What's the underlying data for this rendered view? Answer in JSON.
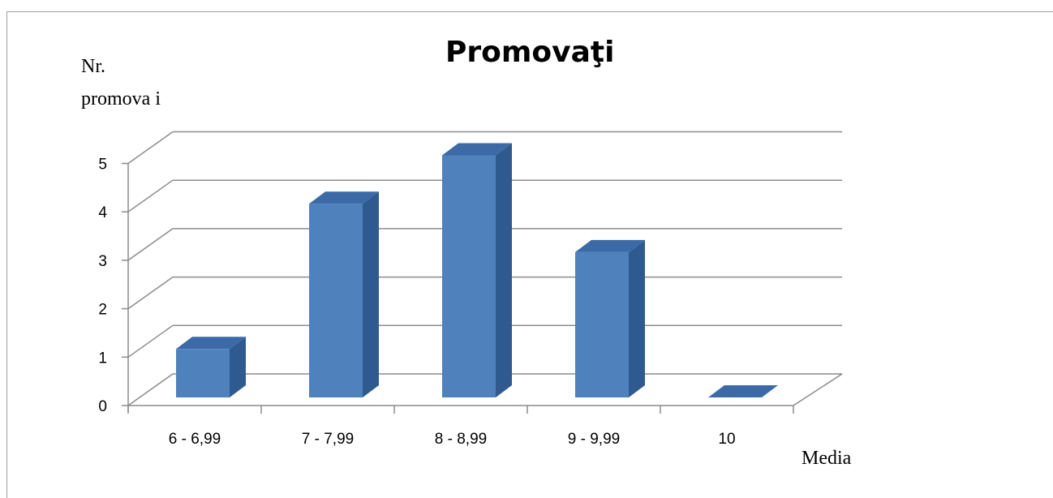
{
  "chart_data": {
    "type": "bar",
    "title": "Promovaţi",
    "ylabel": "Nr.\npromova i",
    "xlabel": "Media",
    "categories": [
      "6 - 6,99",
      "7 - 7,99",
      "8 - 8,99",
      "9 - 9,99",
      "10"
    ],
    "values": [
      1,
      4,
      5,
      3,
      0
    ],
    "ylim": [
      0,
      5
    ],
    "yticks": [
      0,
      1,
      2,
      3,
      4,
      5
    ],
    "grid": true,
    "three_d": true,
    "colors": {
      "bar_front": "#4f81bd",
      "bar_side": "#2f5a8f",
      "bar_top": "#3b6aa6",
      "grid": "#8c8c8c"
    }
  }
}
